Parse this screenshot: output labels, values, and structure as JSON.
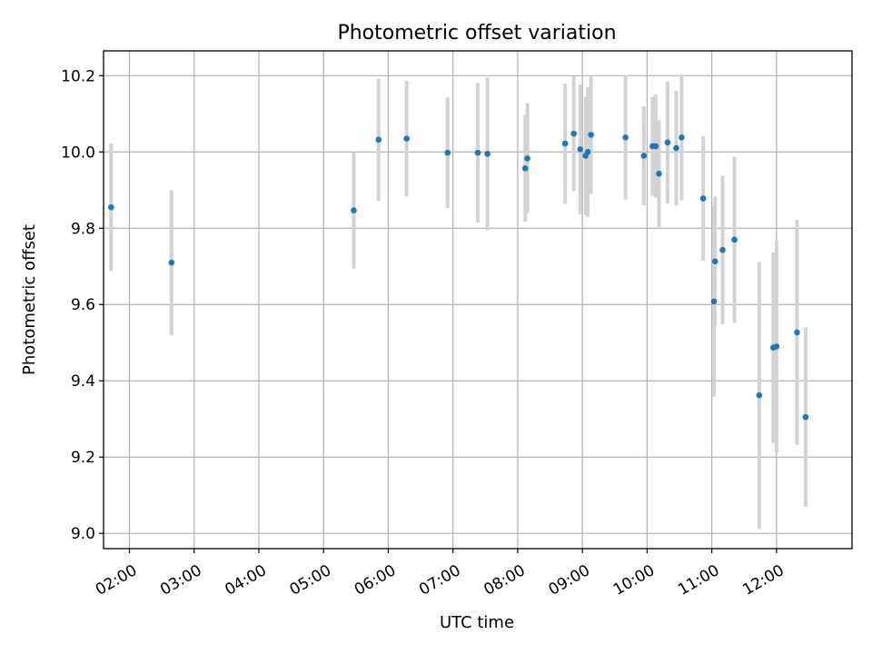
{
  "chart_data": {
    "type": "scatter",
    "title": "Photometric offset variation",
    "xlabel": "UTC time",
    "ylabel": "Photometric offset",
    "xlim": [
      "01:36",
      "13:10"
    ],
    "ylim": [
      8.96,
      10.265
    ],
    "grid": true,
    "x_ticks": [
      "02:00",
      "03:00",
      "04:00",
      "05:00",
      "06:00",
      "07:00",
      "08:00",
      "09:00",
      "10:00",
      "11:00",
      "12:00"
    ],
    "y_ticks": [
      "9.0",
      "9.2",
      "9.4",
      "9.6",
      "9.8",
      "10.0",
      "10.2"
    ],
    "colors": {
      "points": "#1f77b4",
      "error_bars": "#d3d3d3"
    },
    "series": [
      {
        "points": [
          {
            "x": "01:43",
            "y": 9.855,
            "err": 0.167
          },
          {
            "x": "02:39",
            "y": 9.71,
            "err": 0.19
          },
          {
            "x": "05:28",
            "y": 9.847,
            "err": 0.153
          },
          {
            "x": "05:51",
            "y": 10.032,
            "err": 0.16
          },
          {
            "x": "06:17",
            "y": 10.035,
            "err": 0.152
          },
          {
            "x": "06:55",
            "y": 9.998,
            "err": 0.145
          },
          {
            "x": "07:23",
            "y": 9.998,
            "err": 0.183
          },
          {
            "x": "07:32",
            "y": 9.995,
            "err": 0.2
          },
          {
            "x": "08:07",
            "y": 9.957,
            "err": 0.14
          },
          {
            "x": "08:09",
            "y": 9.983,
            "err": 0.145
          },
          {
            "x": "08:44",
            "y": 10.022,
            "err": 0.158
          },
          {
            "x": "08:52",
            "y": 10.048,
            "err": 0.15
          },
          {
            "x": "08:58",
            "y": 10.007,
            "err": 0.17
          },
          {
            "x": "09:03",
            "y": 9.99,
            "err": 0.155
          },
          {
            "x": "09:05",
            "y": 10.0,
            "err": 0.17
          },
          {
            "x": "09:08",
            "y": 10.045,
            "err": 0.155
          },
          {
            "x": "09:40",
            "y": 10.038,
            "err": 0.163
          },
          {
            "x": "09:57",
            "y": 9.99,
            "err": 0.13
          },
          {
            "x": "10:05",
            "y": 10.015,
            "err": 0.13
          },
          {
            "x": "10:08",
            "y": 10.015,
            "err": 0.135
          },
          {
            "x": "10:11",
            "y": 9.943,
            "err": 0.14
          },
          {
            "x": "10:19",
            "y": 10.025,
            "err": 0.16
          },
          {
            "x": "10:27",
            "y": 10.01,
            "err": 0.15
          },
          {
            "x": "10:32",
            "y": 10.038,
            "err": 0.165
          },
          {
            "x": "10:52",
            "y": 9.878,
            "err": 0.163
          },
          {
            "x": "11:02",
            "y": 9.608,
            "err": 0.25
          },
          {
            "x": "11:03",
            "y": 9.713,
            "err": 0.17
          },
          {
            "x": "11:10",
            "y": 9.743,
            "err": 0.195
          },
          {
            "x": "11:21",
            "y": 9.77,
            "err": 0.218
          },
          {
            "x": "11:44",
            "y": 9.362,
            "err": 0.35
          },
          {
            "x": "11:57",
            "y": 9.487,
            "err": 0.25
          },
          {
            "x": "12:00",
            "y": 9.49,
            "err": 0.278
          },
          {
            "x": "12:19",
            "y": 9.527,
            "err": 0.295
          },
          {
            "x": "12:27",
            "y": 9.305,
            "err": 0.235
          }
        ]
      }
    ]
  }
}
